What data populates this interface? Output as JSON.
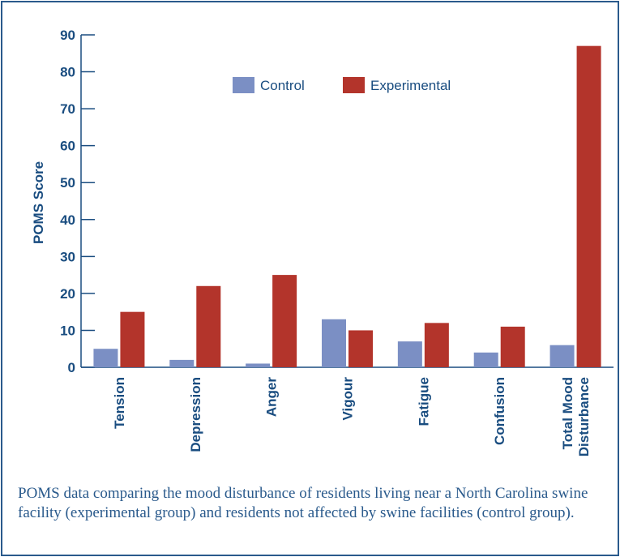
{
  "chart_data": {
    "type": "bar",
    "ylabel": "POMS Score",
    "ylim": [
      0,
      90
    ],
    "yticks": [
      0,
      10,
      20,
      30,
      40,
      50,
      60,
      70,
      80,
      90
    ],
    "categories": [
      "Tension",
      "Depression",
      "Anger",
      "Vigour",
      "Fatigue",
      "Confusion",
      "Total Mood Disturbance"
    ],
    "category_lines": [
      [
        "Tension"
      ],
      [
        "Depression"
      ],
      [
        "Anger"
      ],
      [
        "Vigour"
      ],
      [
        "Fatigue"
      ],
      [
        "Confusion"
      ],
      [
        "Total Mood",
        "Disturbance"
      ]
    ],
    "series": [
      {
        "name": "Control",
        "color": "#7b8fc4",
        "values": [
          5,
          2,
          1,
          13,
          7,
          4,
          6
        ]
      },
      {
        "name": "Experimental",
        "color": "#b3342b",
        "values": [
          15,
          22,
          25,
          10,
          12,
          11,
          87
        ]
      }
    ],
    "legend": "top-center",
    "grid": false
  },
  "caption": "POMS data comparing the mood disturbance of residents living near a North Carolina swine facility (experimental group) and residents not affected by swine facilities (control group).",
  "colors": {
    "frame": "#2a5a8c",
    "text": "#2a5a8c",
    "axis": "#1a4d80"
  }
}
